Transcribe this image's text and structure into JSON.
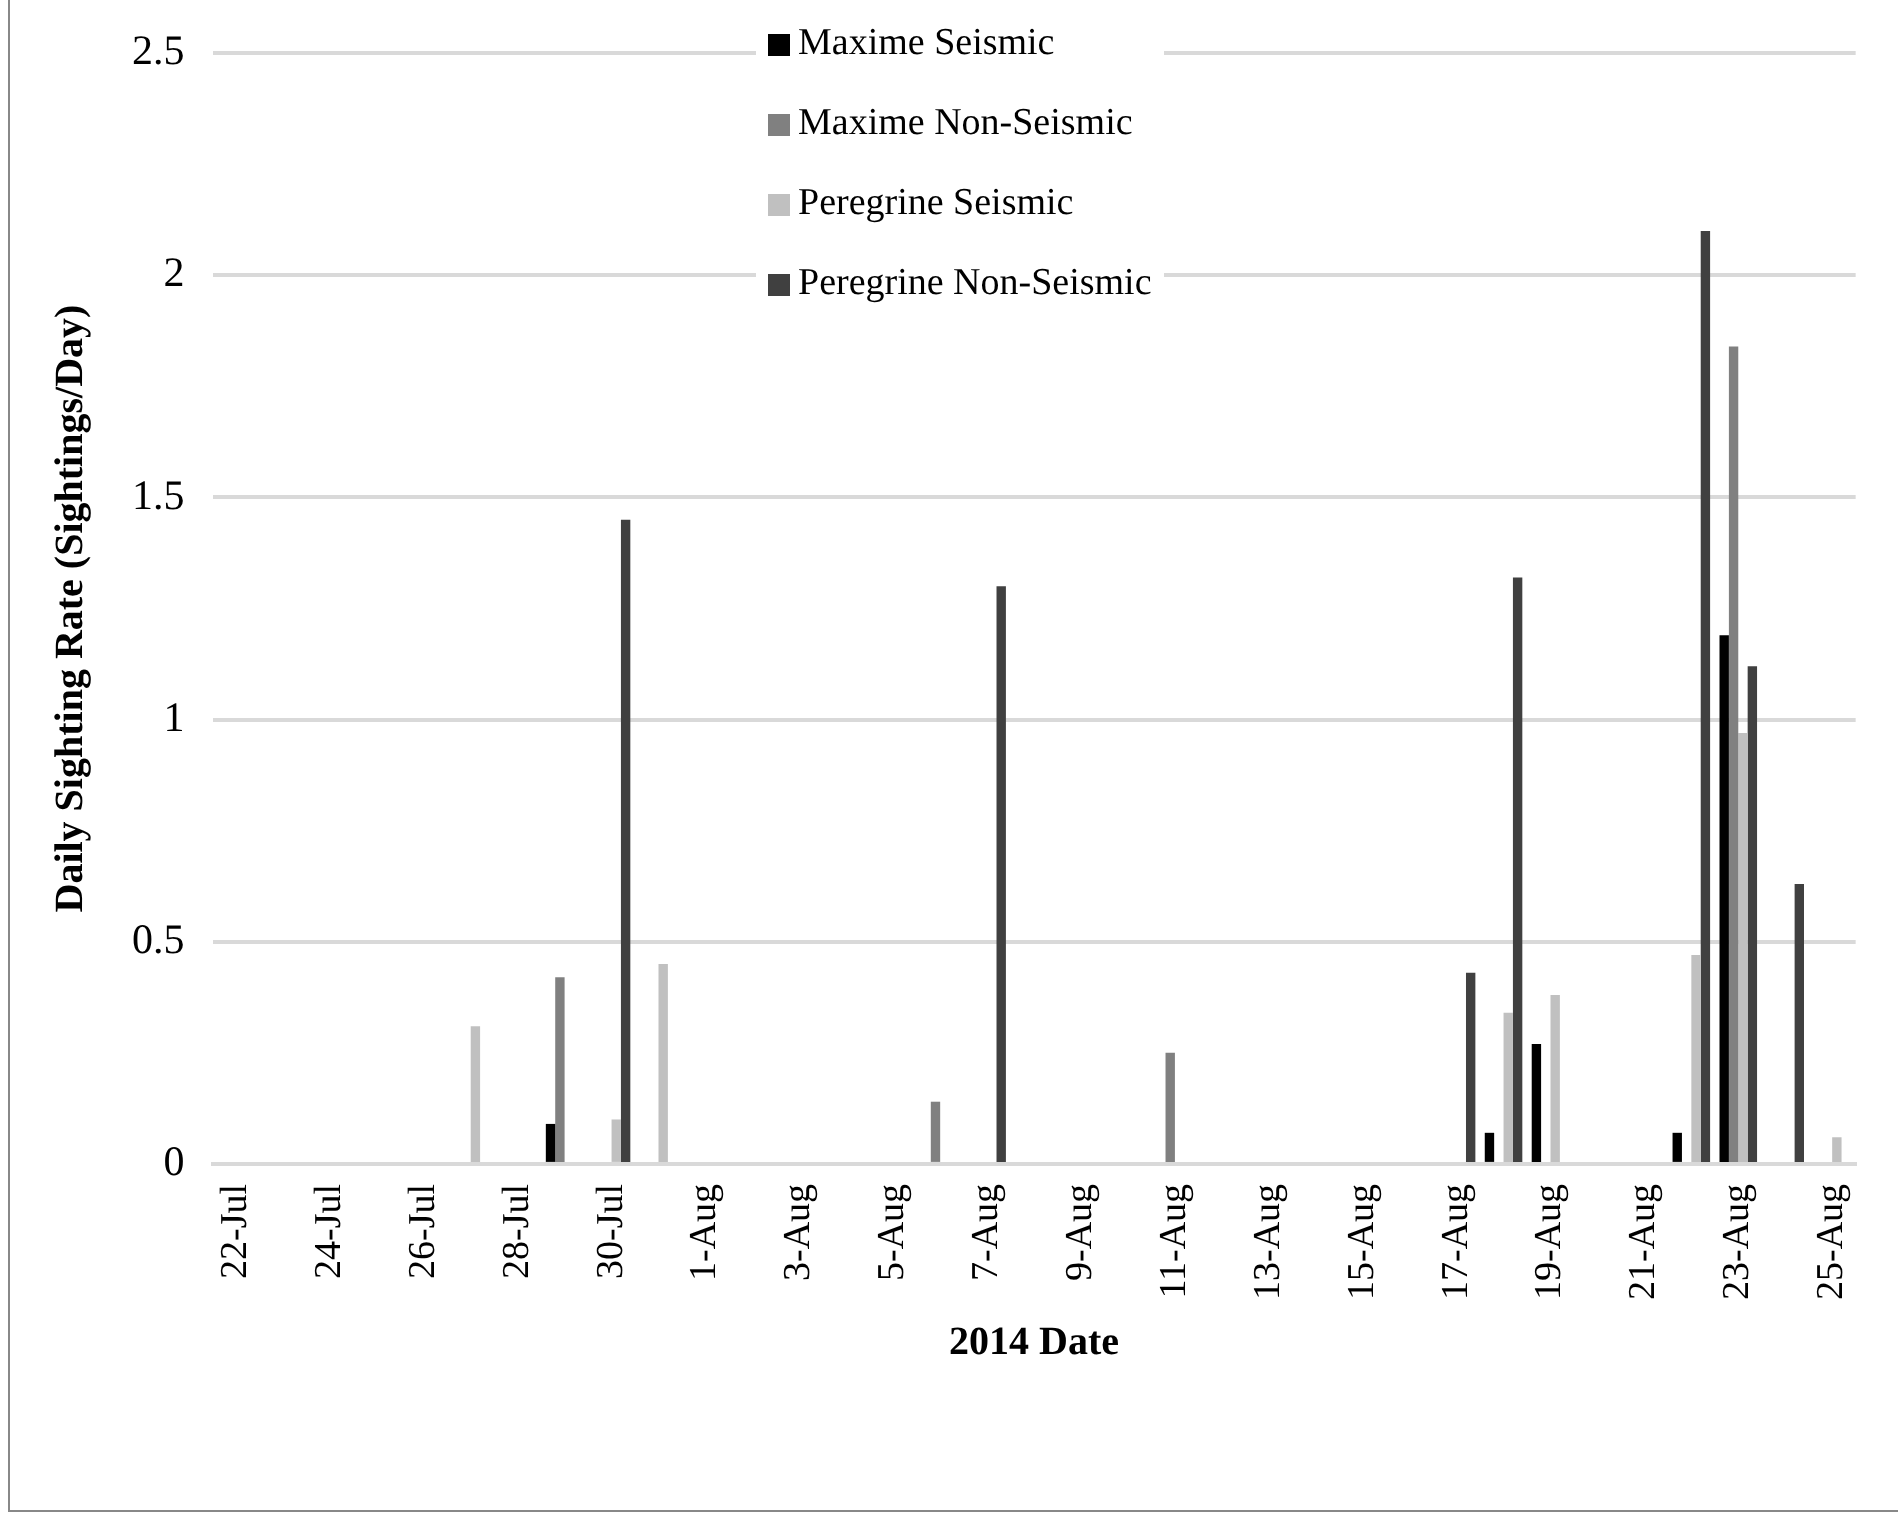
{
  "chart_data": {
    "type": "bar",
    "xlabel": "2014 Date",
    "ylabel": "Daily Sighting Rate (Sightings/Day)",
    "categories": [
      "22-Jul",
      null,
      "24-Jul",
      null,
      "26-Jul",
      null,
      "28-Jul",
      null,
      "30-Jul",
      null,
      "1-Aug",
      null,
      "3-Aug",
      null,
      "5-Aug",
      null,
      "7-Aug",
      null,
      "9-Aug",
      null,
      "11-Aug",
      null,
      "13-Aug",
      null,
      "15-Aug",
      null,
      "17-Aug",
      null,
      "19-Aug",
      null,
      "21-Aug",
      null,
      "23-Aug",
      null,
      "25-Aug"
    ],
    "series": [
      {
        "name": "Maxime Seismic",
        "color": "#000000",
        "values": [
          null,
          null,
          null,
          null,
          null,
          null,
          null,
          0.09,
          null,
          null,
          null,
          null,
          null,
          null,
          null,
          null,
          null,
          null,
          null,
          null,
          null,
          null,
          null,
          null,
          null,
          null,
          null,
          0.07,
          0.27,
          null,
          null,
          0.07,
          1.19,
          null,
          null
        ]
      },
      {
        "name": "Maxime Non-Seismic",
        "color": "#808080",
        "values": [
          null,
          null,
          null,
          null,
          null,
          null,
          null,
          0.42,
          null,
          null,
          null,
          null,
          null,
          null,
          null,
          0.14,
          null,
          null,
          null,
          null,
          0.25,
          null,
          null,
          null,
          null,
          null,
          null,
          null,
          null,
          null,
          null,
          null,
          1.84,
          null,
          null
        ]
      },
      {
        "name": "Peregrine Seismic",
        "color": "#c0c0c0",
        "values": [
          null,
          null,
          null,
          null,
          null,
          0.31,
          null,
          null,
          0.1,
          0.45,
          null,
          null,
          null,
          null,
          null,
          null,
          null,
          null,
          null,
          null,
          null,
          null,
          null,
          null,
          null,
          null,
          null,
          0.34,
          0.38,
          null,
          null,
          0.47,
          0.97,
          null,
          0.06
        ]
      },
      {
        "name": "Peregrine Non-Seismic",
        "color": "#404040",
        "values": [
          null,
          null,
          null,
          null,
          null,
          null,
          null,
          null,
          1.45,
          null,
          null,
          null,
          null,
          null,
          null,
          null,
          1.3,
          null,
          null,
          null,
          null,
          null,
          null,
          null,
          null,
          null,
          0.43,
          1.32,
          null,
          null,
          null,
          2.1,
          1.12,
          0.63,
          null
        ]
      }
    ],
    "ylim": [
      0,
      2.5
    ],
    "yticks": [
      0,
      0.5,
      1,
      1.5,
      2,
      2.5
    ],
    "grid": "y",
    "legend": "top"
  }
}
